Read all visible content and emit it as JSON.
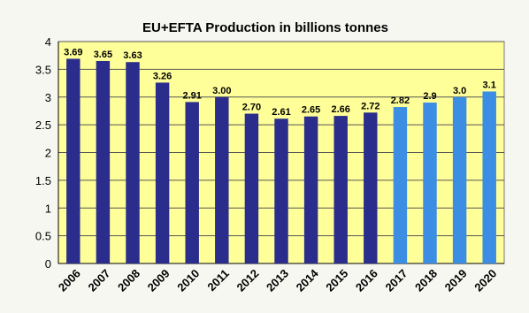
{
  "chart_data": {
    "type": "bar",
    "title": "EU+EFTA Production in billions tonnes",
    "categories": [
      "2006",
      "2007",
      "2008",
      "2009",
      "2010",
      "2011",
      "2012",
      "2013",
      "2014",
      "2015",
      "2016",
      "2017",
      "2018",
      "2019",
      "2020"
    ],
    "values": [
      3.69,
      3.65,
      3.63,
      3.26,
      2.91,
      3.0,
      2.7,
      2.61,
      2.65,
      2.66,
      2.72,
      2.82,
      2.9,
      3.0,
      3.1
    ],
    "value_labels": [
      "3.69",
      "3.65",
      "3.63",
      "3.26",
      "2.91",
      "3.00",
      "2.70",
      "2.61",
      "2.65",
      "2.66",
      "2.72",
      "2.82",
      "2.9",
      "3.0",
      "3.1"
    ],
    "kind": [
      "actual",
      "actual",
      "actual",
      "actual",
      "actual",
      "actual",
      "actual",
      "actual",
      "actual",
      "actual",
      "actual",
      "forecast",
      "forecast",
      "forecast",
      "forecast"
    ],
    "yticks": [
      "0",
      "0.5",
      "1",
      "1.5",
      "2",
      "2.5",
      "3",
      "3.5",
      "4"
    ],
    "ylim": [
      0,
      4
    ],
    "grid": true,
    "colors": {
      "actual": "#2b2d8c",
      "forecast": "#3c8ee4",
      "plot_background": "#ffff99",
      "outer_background": "#f7f7f2",
      "grid": "#555555"
    }
  }
}
